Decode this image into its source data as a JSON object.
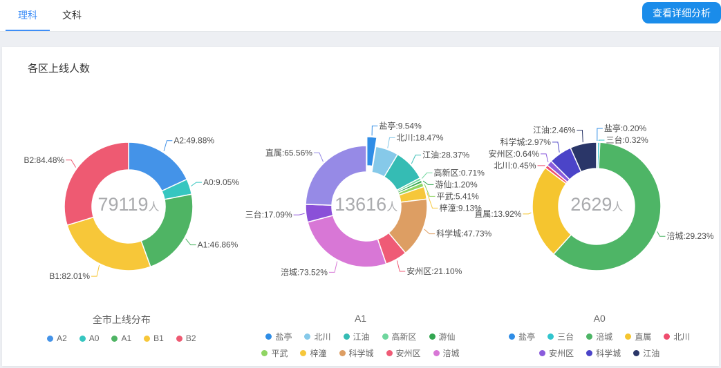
{
  "header": {
    "tabs": [
      {
        "label": "理科",
        "active": true
      },
      {
        "label": "文科",
        "active": false
      }
    ],
    "detail_button_label": "查看详细分析"
  },
  "section_title": "各区上线人数",
  "theme": {
    "tab_active_color": "#3e8ef7",
    "button_bg": "#1a8cea",
    "label_text_color": "#4d4d4d",
    "center_text_color": "#aaabae",
    "legend_text_color": "#666666"
  },
  "chart_data": [
    {
      "type": "pie",
      "title": "全市上线分布",
      "center": {
        "value": "79119",
        "unit": "人"
      },
      "slices": [
        {
          "name": "A2",
          "label": "A2:49.88%",
          "color": "#4493e8",
          "arc": 65
        },
        {
          "name": "A0",
          "label": "A0:9.05%",
          "color": "#36c6c0",
          "arc": 14
        },
        {
          "name": "A1",
          "label": "A1:46.86%",
          "color": "#4fb464",
          "arc": 81
        },
        {
          "name": "B1",
          "label": "B1:82.01%",
          "color": "#f7c739",
          "arc": 93
        },
        {
          "name": "B2",
          "label": "B2:84.48%",
          "color": "#ee5a72",
          "arc": 107
        }
      ],
      "legend_rows": [
        [
          "A2",
          "A0",
          "A1",
          "B1",
          "B2"
        ]
      ]
    },
    {
      "type": "pie",
      "title": "A1",
      "center": {
        "value": "13616",
        "unit": "人"
      },
      "slices": [
        {
          "name": "盐亭",
          "label": "盐亭:9.54%",
          "color": "#2f8de6",
          "arc": 9,
          "selected": true
        },
        {
          "name": "北川",
          "label": "北川:18.47%",
          "color": "#86c9e9",
          "arc": 22
        },
        {
          "name": "江油",
          "label": "江油:28.37%",
          "color": "#35bcb4",
          "arc": 31
        },
        {
          "name": "高新区",
          "label": "高新区:0.71%",
          "color": "#6fd69e",
          "arc": 2.5
        },
        {
          "name": "游仙",
          "label": "游仙:1.20%",
          "color": "#33a651",
          "arc": 2.5
        },
        {
          "name": "平武",
          "label": "平武:5.41%",
          "color": "#90d563",
          "arc": 4
        },
        {
          "name": "梓潼",
          "label": "梓潼:9.13%",
          "color": "#f6c73a",
          "arc": 12
        },
        {
          "name": "科学城",
          "label": "科学城:47.73%",
          "color": "#dd9e63",
          "arc": 57
        },
        {
          "name": "安州区",
          "label": "安州区:21.10%",
          "color": "#ef5b76",
          "arc": 21
        },
        {
          "name": "涪城",
          "label": "涪城:73.52%",
          "color": "#d877d6",
          "arc": 94
        },
        {
          "name": "三台",
          "label": "三台:17.09%",
          "color": "#8a50d8",
          "arc": 17
        },
        {
          "name": "直属",
          "label": "直属:65.56%",
          "color": "#968ae6",
          "arc": 88
        }
      ],
      "legend_rows": [
        [
          "盐亭",
          "北川",
          "江油",
          "高新区",
          "游仙"
        ],
        [
          "平武",
          "梓潼",
          "科学城",
          "安州区",
          "涪城"
        ]
      ]
    },
    {
      "type": "pie",
      "title": "A0",
      "center": {
        "value": "2629",
        "unit": "人"
      },
      "slices": [
        {
          "name": "盐亭",
          "label": "盐亭:0.20%",
          "color": "#2f8de6",
          "arc": 1
        },
        {
          "name": "三台",
          "label": "三台:0.32%",
          "color": "#32c5ce",
          "arc": 2
        },
        {
          "name": "涪城",
          "label": "涪城:29.23%",
          "color": "#4eb566",
          "arc": 219
        },
        {
          "name": "直属",
          "label": "直属:13.92%",
          "color": "#f5c52f",
          "arc": 85
        },
        {
          "name": "北川",
          "label": "北川:0.45%",
          "color": "#ef4d6e",
          "arc": 3
        },
        {
          "name": "安州区",
          "label": "安州区:0.64%",
          "color": "#8a5bdc",
          "arc": 5
        },
        {
          "name": "科学城",
          "label": "科学城:2.97%",
          "color": "#4b44c8",
          "arc": 21
        },
        {
          "name": "江油",
          "label": "江油:2.46%",
          "color": "#2a3668",
          "arc": 24
        }
      ],
      "legend_rows": [
        [
          "盐亭",
          "三台",
          "涪城",
          "直属",
          "北川"
        ],
        [
          "安州区",
          "科学城",
          "江油"
        ]
      ]
    }
  ]
}
